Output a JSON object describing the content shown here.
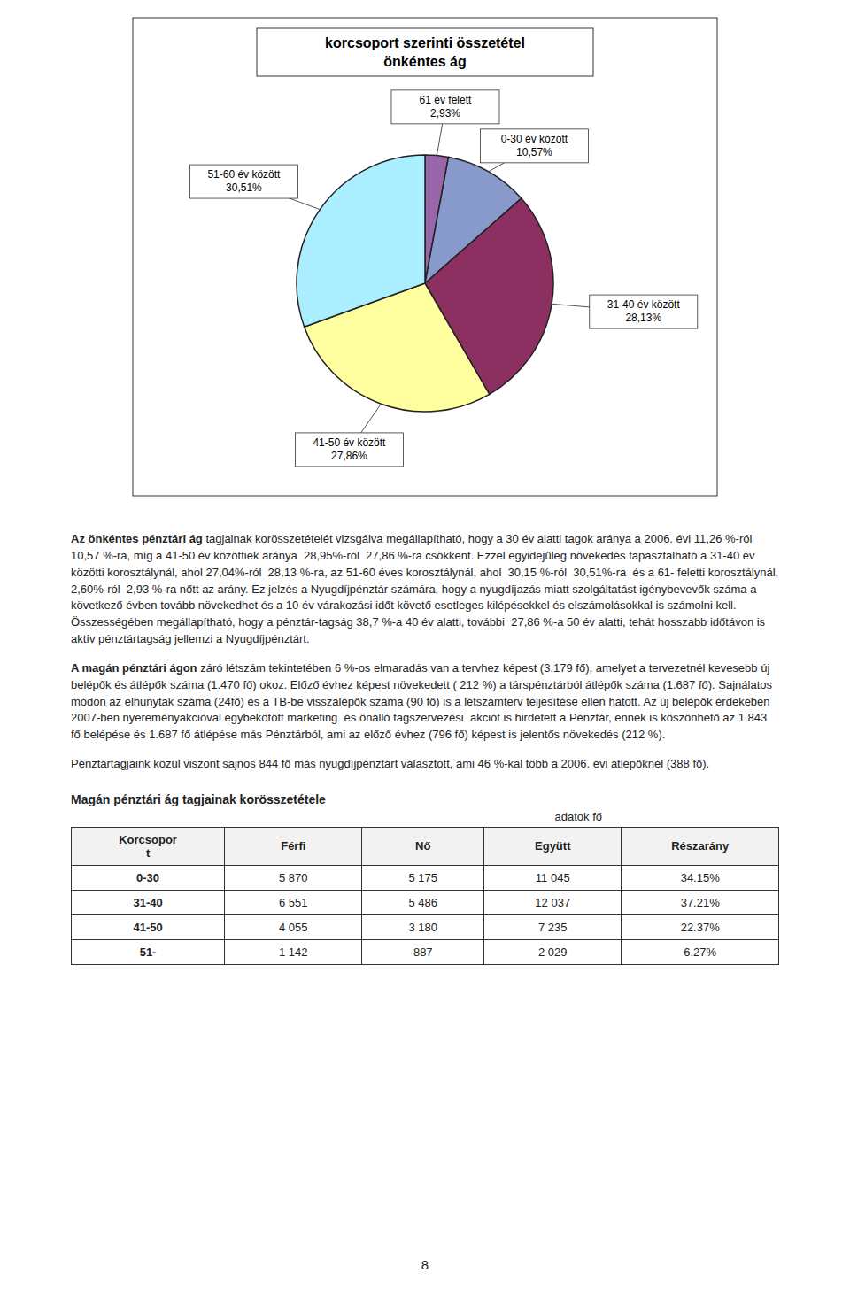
{
  "chart_data": [
    {
      "type": "pie",
      "title": "korcsoport szerinti összetétel",
      "subtitle": "önkéntes ág",
      "categories": [
        "61 év felett",
        "0-30 év között",
        "31-40 év között",
        "41-50 év között",
        "51-60 év között"
      ],
      "values": [
        2.93,
        10.57,
        28.13,
        27.86,
        30.51
      ],
      "value_labels": [
        "2,93%",
        "10,57%",
        "28,13%",
        "27,86%",
        "30,51%"
      ],
      "colors": [
        "#9966AA",
        "#8899CC",
        "#8B3060",
        "#FFFFA0",
        "#AAEEFF"
      ]
    },
    {
      "type": "table",
      "title": "Magán pénztári ág tagjainak korösszetétele",
      "subtitle": "adatok fő",
      "columns": [
        "Korcsopor\nt",
        "Férfi",
        "Nő",
        "Együtt",
        "Részarány"
      ],
      "rows": [
        [
          "0-30",
          "5 870",
          "5 175",
          "11 045",
          "34.15%"
        ],
        [
          "31-40",
          "6 551",
          "5 486",
          "12 037",
          "37.21%"
        ],
        [
          "41-50",
          "4 055",
          "3 180",
          "7 235",
          "22.37%"
        ],
        [
          "51-",
          "1 142",
          "887",
          "2 029",
          "6.27%"
        ]
      ]
    }
  ],
  "page": {
    "paragraphs": [
      {
        "bold": "Az önkéntes pénztári ág",
        "text": " tagjainak korösszetételét vizsgálva megállapítható, hogy a 30 év alatti tagok aránya a 2006. évi 11,26 %-ról 10,57 %-ra, míg a 41-50 év közöttiek aránya  28,95%-ról  27,86 %-ra csökkent. Ezzel egyidejűleg növekedés tapasztalható a 31-40 év közötti korosztálynál, ahol 27,04%-ról  28,13 %-ra, az 51-60 éves korosztálynál, ahol  30,15 %-ról  30,51%-ra  és a 61- feletti korosztálynál,  2,60%-ról  2,93 %-ra nőtt az arány. Ez jelzés a Nyugdíjpénztár számára, hogy a nyugdíjazás miatt szolgáltatást igénybevevők száma a következő évben tovább növekedhet és a 10 év várakozási időt követő esetleges kilépésekkel és elszámolásokkal is számolni kell. Összességében megállapítható, hogy a pénztár-tagság 38,7 %-a 40 év alatti, további  27,86 %-a 50 év alatti, tehát hosszabb időtávon is aktív pénztártagság jellemzi a Nyugdíjpénztárt."
      },
      {
        "bold": "A magán pénztári ágon",
        "text": " záró létszám tekintetében 6 %-os elmaradás van a tervhez képest (3.179 fő), amelyet a tervezetnél kevesebb új belépők és átlépők száma (1.470 fő) okoz. Előző évhez képest növekedett ( 212 %) a társpénztárból átlépők száma (1.687 fő). Sajnálatos módon az elhunytak száma (24fő) és a TB-be visszalépők száma (90 fő) is a létszámterv teljesítése ellen hatott. Az új belépők érdekében 2007-ben nyereményakcióval egybekötött marketing  és önálló tagszervezési  akciót is hirdetett a Pénztár, ennek is köszönhető az 1.843 fő belépése és 1.687 fő átlépése más Pénztárból, ami az előző évhez (796 fő) képest is jelentős növekedés (212 %)."
      },
      {
        "text": "Pénztártagjaink közül viszont sajnos 844 fő más nyugdíjpénztárt választott, ami 46 %-kal több a 2006. évi átlépőknél (388 fő)."
      }
    ],
    "page_number": "8",
    "background_color": "#ffffff"
  }
}
